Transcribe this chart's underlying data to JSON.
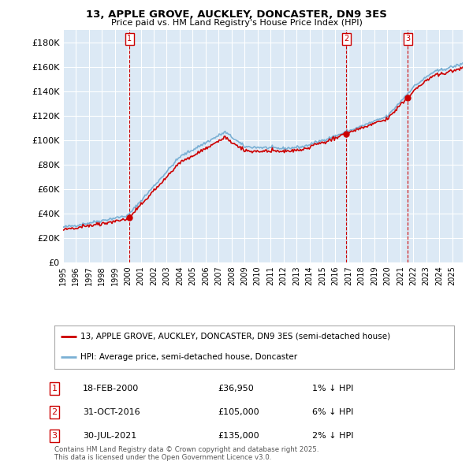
{
  "title1": "13, APPLE GROVE, AUCKLEY, DONCASTER, DN9 3ES",
  "title2": "Price paid vs. HM Land Registry's House Price Index (HPI)",
  "ylabel_ticks": [
    "£0",
    "£20K",
    "£40K",
    "£60K",
    "£80K",
    "£100K",
    "£120K",
    "£140K",
    "£160K",
    "£180K"
  ],
  "ytick_values": [
    0,
    20000,
    40000,
    60000,
    80000,
    100000,
    120000,
    140000,
    160000,
    180000
  ],
  "ylim": [
    0,
    190000
  ],
  "xlim_start": 1995.0,
  "xlim_end": 2025.8,
  "background_color": "#dce9f5",
  "sale_color": "#cc0000",
  "hpi_color": "#7ab0d4",
  "vline_color": "#cc0000",
  "grid_color": "#ffffff",
  "legend_label_sale": "13, APPLE GROVE, AUCKLEY, DONCASTER, DN9 3ES (semi-detached house)",
  "legend_label_hpi": "HPI: Average price, semi-detached house, Doncaster",
  "transactions": [
    {
      "num": 1,
      "date_float": 2000.12,
      "price": 36950,
      "label": "18-FEB-2000",
      "price_str": "£36,950",
      "pct": "1% ↓ HPI"
    },
    {
      "num": 2,
      "date_float": 2016.83,
      "price": 105000,
      "label": "31-OCT-2016",
      "price_str": "£105,000",
      "pct": "6% ↓ HPI"
    },
    {
      "num": 3,
      "date_float": 2021.58,
      "price": 135000,
      "label": "30-JUL-2021",
      "price_str": "£135,000",
      "pct": "2% ↓ HPI"
    }
  ],
  "footer": "Contains HM Land Registry data © Crown copyright and database right 2025.\nThis data is licensed under the Open Government Licence v3.0.",
  "box_label_color": "#cc0000"
}
